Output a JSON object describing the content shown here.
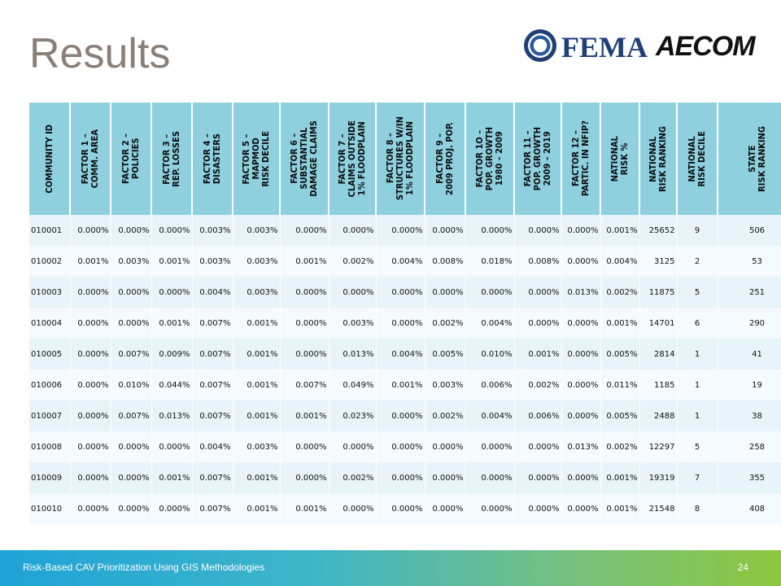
{
  "slide": {
    "title": "Results",
    "logos": {
      "fema": "FEMA",
      "aecom": "AECOM"
    },
    "footer": {
      "text": "Risk-Based CAV Prioritization Using GIS Methodologies",
      "page": "24"
    },
    "colors": {
      "header_bg": "#8fd0df",
      "row_odd": "#e8f4f9",
      "row_even": "#f4fafd",
      "title": "#8a7f78",
      "footer_start": "#1fa3d6",
      "footer_end": "#8cc63e"
    }
  },
  "table": {
    "headers": [
      "COMMUNITY ID",
      "FACTOR 1 –\nCOMM. AREA",
      "FACTOR 2 –\nPOLICIES",
      "FACTOR 3 –\nREP. LOSSES",
      "FACTOR 4 –\nDISASTERS",
      "FACTOR 5 –\nMAPMOD\nRISK DECILE",
      "FACTOR 6 –\nSUBSTANTIAL\nDAMAGE CLAIMS",
      "FACTOR 7 –\nCLAIMS OUTSIDE\n1% FLOODPLAIN",
      "FACTOR 8 –\nSTRUCTURES W/IN\n1% FLOODPLAIN",
      "FACTOR 9 –\n2009 PROJ. POP.",
      "FACTOR 1O –\nPOP. GROWTH\n1980 – 2009",
      "FACTOR 11 –\nPOP. GROWTH\n2009 – 2019",
      "FACTOR 12 –\nPARTIC. IN NFIP?",
      "NATIONAL\nRISK %",
      "NATIONAL\nRISK RANKING",
      "NATIONAL\nRISK DECILE",
      "STATE\nRISK RANKING"
    ],
    "rows": [
      [
        "010001",
        "0.000%",
        "0.000%",
        "0.000%",
        "0.003%",
        "0.003%",
        "0.000%",
        "0.000%",
        "0.000%",
        "0.000%",
        "0.000%",
        "0.000%",
        "0.000%",
        "0.001%",
        "25652",
        "9",
        "506"
      ],
      [
        "010002",
        "0.001%",
        "0.003%",
        "0.001%",
        "0.003%",
        "0.003%",
        "0.001%",
        "0.002%",
        "0.004%",
        "0.008%",
        "0.018%",
        "0.008%",
        "0.000%",
        "0.004%",
        "3125",
        "2",
        "53"
      ],
      [
        "010003",
        "0.000%",
        "0.000%",
        "0.000%",
        "0.004%",
        "0.003%",
        "0.000%",
        "0.000%",
        "0.000%",
        "0.000%",
        "0.000%",
        "0.000%",
        "0.013%",
        "0.002%",
        "11875",
        "5",
        "251"
      ],
      [
        "010004",
        "0.000%",
        "0.000%",
        "0.001%",
        "0.007%",
        "0.001%",
        "0.000%",
        "0.003%",
        "0.000%",
        "0.002%",
        "0.004%",
        "0.000%",
        "0.000%",
        "0.001%",
        "14701",
        "6",
        "290"
      ],
      [
        "010005",
        "0.000%",
        "0.007%",
        "0.009%",
        "0.007%",
        "0.001%",
        "0.000%",
        "0.013%",
        "0.004%",
        "0.005%",
        "0.010%",
        "0.001%",
        "0.000%",
        "0.005%",
        "2814",
        "1",
        "41"
      ],
      [
        "010006",
        "0.000%",
        "0.010%",
        "0.044%",
        "0.007%",
        "0.001%",
        "0.007%",
        "0.049%",
        "0.001%",
        "0.003%",
        "0.006%",
        "0.002%",
        "0.000%",
        "0.011%",
        "1185",
        "1",
        "19"
      ],
      [
        "010007",
        "0.000%",
        "0.007%",
        "0.013%",
        "0.007%",
        "0.001%",
        "0.001%",
        "0.023%",
        "0.000%",
        "0.002%",
        "0.004%",
        "0.006%",
        "0.000%",
        "0.005%",
        "2488",
        "1",
        "38"
      ],
      [
        "010008",
        "0.000%",
        "0.000%",
        "0.000%",
        "0.004%",
        "0.003%",
        "0.000%",
        "0.000%",
        "0.000%",
        "0.000%",
        "0.000%",
        "0.000%",
        "0.013%",
        "0.002%",
        "12297",
        "5",
        "258"
      ],
      [
        "010009",
        "0.000%",
        "0.000%",
        "0.001%",
        "0.007%",
        "0.001%",
        "0.000%",
        "0.002%",
        "0.000%",
        "0.000%",
        "0.000%",
        "0.000%",
        "0.000%",
        "0.001%",
        "19319",
        "7",
        "355"
      ],
      [
        "010010",
        "0.000%",
        "0.000%",
        "0.000%",
        "0.007%",
        "0.001%",
        "0.001%",
        "0.000%",
        "0.000%",
        "0.000%",
        "0.000%",
        "0.000%",
        "0.000%",
        "0.001%",
        "21548",
        "8",
        "408"
      ]
    ]
  }
}
